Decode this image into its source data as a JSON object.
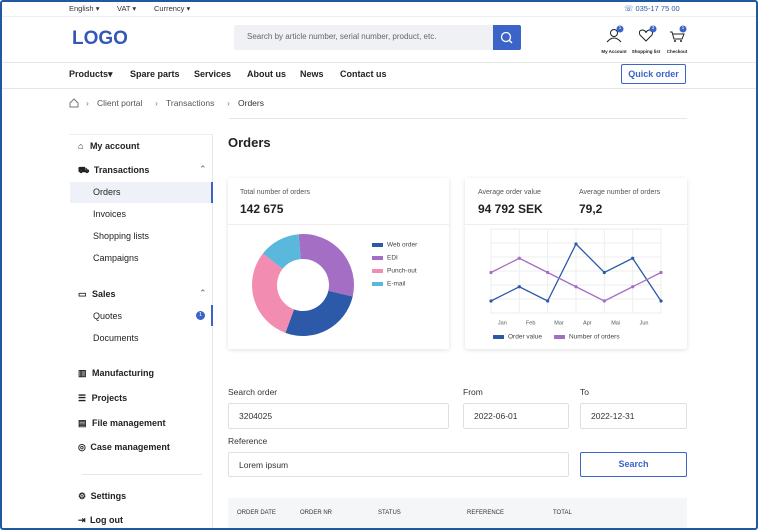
{
  "topbar": {
    "menus": [
      "English",
      "VAT",
      "Currency"
    ],
    "phone": "035-17 75 00"
  },
  "header": {
    "logo": "LOGO",
    "search_placeholder": "Search by article number, serial number, product, etc.",
    "icons": [
      {
        "label": "My Account",
        "badge": "1"
      },
      {
        "label": "Shopping list",
        "badge": "3"
      },
      {
        "label": "Checkout",
        "badge": "1"
      }
    ]
  },
  "nav": {
    "items": [
      "Products",
      "Spare parts",
      "Services",
      "About us",
      "News",
      "Contact us"
    ],
    "button": "Quick order"
  },
  "breadcrumb": [
    "Client portal",
    "Transactions",
    "Orders"
  ],
  "sidebar": {
    "my_account": "My account",
    "transactions": "Transactions",
    "transactions_items": [
      "Orders",
      "Invoices",
      "Shopping lists",
      "Campaigns"
    ],
    "sales": "Sales",
    "sales_items": [
      "Quotes",
      "Documents"
    ],
    "quotes_badge": "1",
    "sections": [
      "Manufacturing",
      "Projects",
      "File management",
      "Case management"
    ],
    "settings": "Settings",
    "logout": "Log out"
  },
  "page_title": "Orders",
  "stats": {
    "total_label": "Total number of orders",
    "total_value": "142 675",
    "avg_value_label": "Average order value",
    "avg_value": "94 792 SEK",
    "avg_count_label": "Average number of orders",
    "avg_count": "79,2"
  },
  "chart_data": [
    {
      "type": "pie",
      "donut": true,
      "series": [
        {
          "name": "Web order",
          "color": "#2c5aa8",
          "value": 27
        },
        {
          "name": "EDI",
          "color": "#a46ec4",
          "value": 30
        },
        {
          "name": "Punch-out",
          "color": "#f28cb0",
          "value": 30
        },
        {
          "name": "E-mail",
          "color": "#5ab8dc",
          "value": 13
        }
      ]
    },
    {
      "type": "line",
      "grid": true,
      "categories": [
        "Jan",
        "Feb",
        "Mar",
        "Apr",
        "Mai",
        "Jun",
        null
      ],
      "series": [
        {
          "name": "Order value",
          "color": "#2c5aa8",
          "values": [
            1,
            2,
            1,
            5,
            3,
            4,
            1
          ]
        },
        {
          "name": "Number of orders",
          "color": "#a46ec4",
          "values": [
            3,
            4,
            3,
            2,
            1,
            2,
            3
          ]
        }
      ]
    }
  ],
  "form": {
    "search_label": "Search order",
    "search_value": "3204025",
    "from_label": "From",
    "from_value": "2022-06-01",
    "to_label": "To",
    "to_value": "2022-12-31",
    "reference_label": "Reference",
    "reference_value": "Lorem ipsum",
    "button": "Search"
  },
  "table": {
    "headers": [
      "ORDER DATE",
      "ORDER NR",
      "STATUS",
      "REFERENCE",
      "TOTAL"
    ]
  }
}
